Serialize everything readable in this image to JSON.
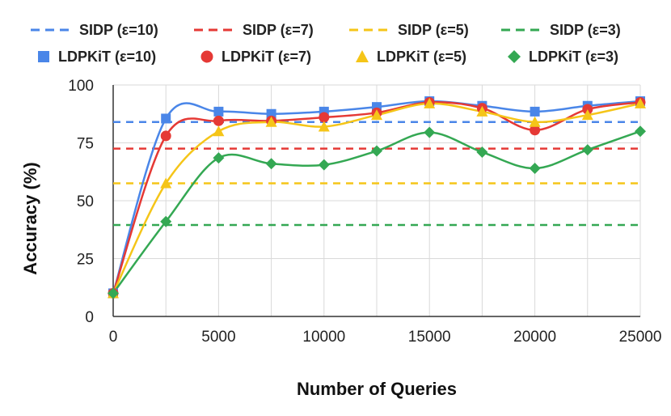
{
  "chart_data": {
    "type": "line",
    "title": "",
    "xlabel": "Number of Queries",
    "ylabel": "Accuracy (%)",
    "xlim": [
      0,
      25000
    ],
    "ylim": [
      0,
      100
    ],
    "xticks": [
      0,
      5000,
      10000,
      15000,
      20000,
      25000
    ],
    "yticks": [
      0,
      25,
      50,
      75,
      100
    ],
    "grid": true,
    "legend_position": "top",
    "x": [
      0,
      2500,
      5000,
      7500,
      10000,
      12500,
      15000,
      17500,
      20000,
      22500,
      25000
    ],
    "baselines": [
      {
        "name": "SIDP (ε=10)",
        "value": 84,
        "color": "#4a86e8"
      },
      {
        "name": "SIDP (ε=7)",
        "value": 72.5,
        "color": "#e53935"
      },
      {
        "name": "SIDP (ε=5)",
        "value": 57.5,
        "color": "#f5c518"
      },
      {
        "name": "SIDP (ε=3)",
        "value": 39.5,
        "color": "#34a853"
      }
    ],
    "series": [
      {
        "name": "LDPKiT (ε=10)",
        "marker": "square",
        "color": "#4a86e8",
        "values": [
          10,
          85.5,
          88.5,
          87.5,
          88.5,
          90.5,
          93,
          91,
          88.5,
          91,
          93
        ]
      },
      {
        "name": "LDPKiT (ε=7)",
        "marker": "circle",
        "color": "#e53935",
        "values": [
          10,
          78,
          84.5,
          84.5,
          86,
          88,
          92.5,
          90,
          80.5,
          89.5,
          92.5
        ]
      },
      {
        "name": "LDPKiT (ε=5)",
        "marker": "triangle",
        "color": "#f5c518",
        "values": [
          10,
          57.5,
          80,
          84,
          82,
          87,
          92,
          88.5,
          84,
          87,
          92
        ]
      },
      {
        "name": "LDPKiT (ε=3)",
        "marker": "diamond",
        "color": "#34a853",
        "values": [
          10,
          41,
          68.5,
          66,
          65.5,
          71.5,
          79.5,
          71,
          64,
          72,
          80
        ]
      }
    ]
  }
}
